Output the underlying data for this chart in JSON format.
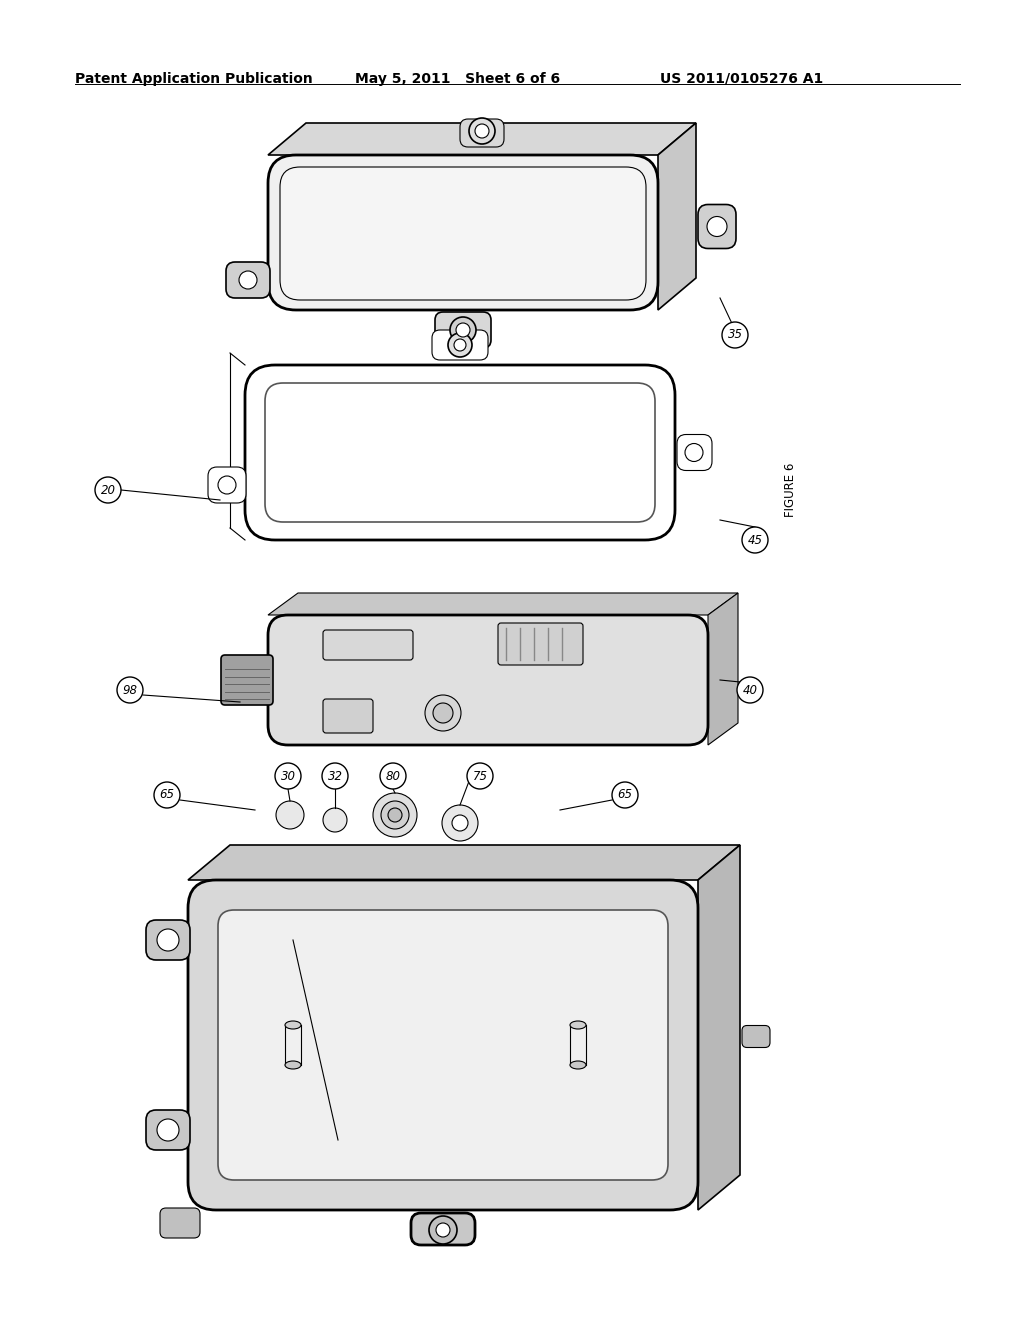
{
  "background_color": "#ffffff",
  "header_left": "Patent Application Publication",
  "header_mid": "May 5, 2011   Sheet 6 of 6",
  "header_right": "US 2011/0105276 A1",
  "figure_label": "FIGURE 6",
  "header_fontsize": 10,
  "ref_fontsize": 9,
  "fig_label_fontsize": 9
}
